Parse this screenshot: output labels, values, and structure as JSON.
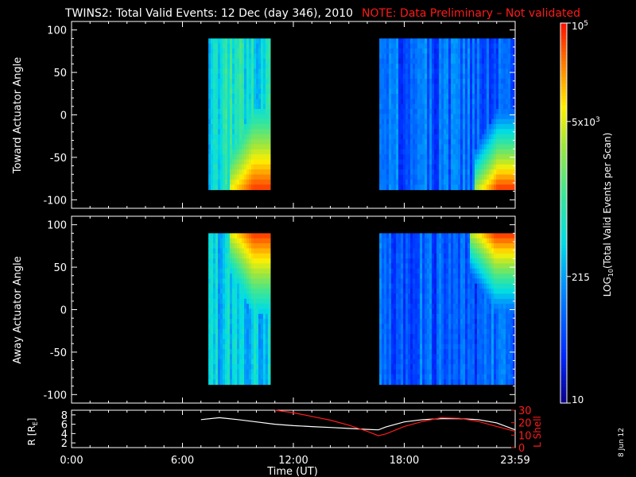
{
  "header": {
    "title": "TWINS2: Total Valid Events: 12 Dec (day 346), 2010",
    "note": "NOTE: Data Preliminary – Not validated"
  },
  "colors": {
    "background": "#000000",
    "axis": "#ffffff",
    "note": "#ff1a1a",
    "r_line": "#ffffff",
    "l_line": "#ff1a1a"
  },
  "chart_data": [
    {
      "type": "heatmap",
      "name": "toward",
      "ylabel": "Toward Actuator Angle",
      "ylim": [
        -110,
        110
      ],
      "yticks": [
        "100",
        "50",
        "0",
        "-50",
        "-100"
      ],
      "ytick_values": [
        100,
        50,
        0,
        -50,
        -100
      ],
      "xlim": [
        0,
        24
      ],
      "segments": [
        {
          "t_start": 7.4,
          "t_end": 10.75,
          "angle_min": -88,
          "angle_max": 90,
          "base_level": 0.45,
          "hot_edge": "bottom",
          "hot_onset": 8.6
        },
        {
          "t_start": 16.65,
          "t_end": 24.0,
          "angle_min": -88,
          "angle_max": 90,
          "base_level": 0.22,
          "hot_edge": "bottom",
          "hot_onset": 21.8
        }
      ]
    },
    {
      "type": "heatmap",
      "name": "away",
      "ylabel": "Away Actuator Angle",
      "ylim": [
        -110,
        110
      ],
      "yticks": [
        "100",
        "50",
        "0",
        "-50",
        "-100"
      ],
      "ytick_values": [
        100,
        50,
        0,
        -50,
        -100
      ],
      "xlim": [
        0,
        24
      ],
      "segments": [
        {
          "t_start": 7.4,
          "t_end": 10.75,
          "angle_min": -88,
          "angle_max": 90,
          "base_level": 0.4,
          "hot_edge": "top",
          "hot_onset": 8.6
        },
        {
          "t_start": 16.65,
          "t_end": 24.0,
          "angle_min": -88,
          "angle_max": 90,
          "base_level": 0.22,
          "hot_edge": "top",
          "hot_onset": 21.5
        }
      ]
    },
    {
      "type": "line",
      "name": "orbit",
      "xlabel": "Time (UT)",
      "xlim": [
        0,
        24
      ],
      "xtick_values": [
        0,
        6,
        12,
        18,
        24
      ],
      "xticks": [
        "0:00",
        "6:00",
        "12:00",
        "18:00",
        "23:59"
      ],
      "left_axis": {
        "label_main": "R [R",
        "label_sub": "E",
        "label_end": "]",
        "ylim": [
          1,
          9
        ],
        "yticks": [
          "2",
          "4",
          "6",
          "8"
        ],
        "ytick_values": [
          2,
          4,
          6,
          8
        ]
      },
      "right_axis": {
        "label": "L Shell",
        "ylim": [
          0,
          30
        ],
        "yticks": [
          "0",
          "10",
          "20",
          "30"
        ],
        "ytick_values": [
          0,
          10,
          20,
          30
        ]
      },
      "series": [
        {
          "name": "R",
          "axis": "left",
          "x": [
            7.0,
            8.0,
            9.0,
            10.0,
            11.0,
            12.0,
            13.0,
            14.0,
            15.0,
            16.0,
            16.6,
            17.0,
            18.0,
            19.0,
            20.0,
            21.0,
            22.0,
            23.0,
            24.0
          ],
          "y": [
            7.0,
            7.4,
            7.0,
            6.5,
            6.0,
            5.7,
            5.5,
            5.3,
            5.1,
            4.9,
            4.8,
            5.4,
            6.5,
            7.0,
            7.2,
            7.2,
            7.0,
            6.3,
            4.8
          ]
        },
        {
          "name": "L Shell",
          "axis": "right",
          "x": [
            11.0,
            12.0,
            13.0,
            14.0,
            15.0,
            16.0,
            16.6,
            17.0,
            18.0,
            19.0,
            20.0,
            21.0,
            22.0,
            23.0,
            24.0
          ],
          "y": [
            30,
            28,
            25,
            22,
            18,
            13,
            9.5,
            11,
            17,
            21,
            24,
            23.5,
            21,
            17,
            13
          ]
        }
      ]
    }
  ],
  "colorbar": {
    "label_prefix": "LOG",
    "label_sub": "10",
    "label_rest": "(Total Valid Events per Scan)",
    "ticks": [
      {
        "base": "10",
        "exp": "5",
        "level": 1.0
      },
      {
        "base": "5x10",
        "exp": "3",
        "level": 0.741
      },
      {
        "base": "215",
        "exp": "",
        "level": 0.333
      },
      {
        "base": "10",
        "exp": "",
        "level": 0.0
      }
    ]
  },
  "footer": {
    "date_stamp": "8 Jun 12"
  }
}
